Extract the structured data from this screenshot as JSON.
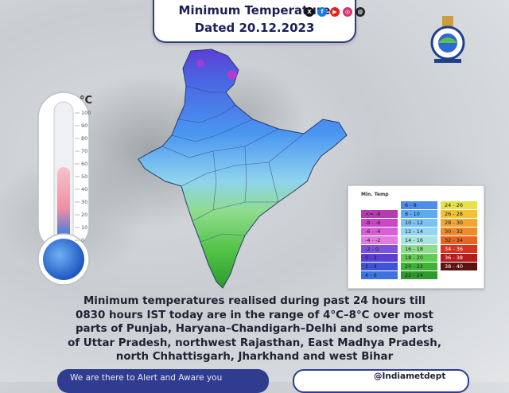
{
  "header": {
    "title": "Minimum Temperature",
    "date_line": "Dated 20.12.2023"
  },
  "thermometer": {
    "unit": "°C",
    "ticks": [
      "100",
      "90",
      "80",
      "70",
      "60",
      "50",
      "40",
      "30",
      "20",
      "10",
      "0"
    ],
    "fill_level_fraction": 0.2,
    "colors": {
      "fill_top": "#f4b6c0",
      "fill_bottom": "#2f61c8",
      "bulb": "#2f6fd0"
    }
  },
  "map": {
    "region": "India",
    "description_colors": {
      "north": "#5b3fd6",
      "mid": "#4da3ff",
      "south": "#5bd05a"
    }
  },
  "legend": {
    "title": "Min. Temp",
    "items": [
      {
        "label": "<= -8",
        "color": "#b23cb0"
      },
      {
        "label": "-8 - -6",
        "color": "#c946c6"
      },
      {
        "label": "-6 - -4",
        "color": "#d760d4"
      },
      {
        "label": "-4 - -2",
        "color": "#e07be0"
      },
      {
        "label": "-2 - 0",
        "color": "#7b52d9"
      },
      {
        "label": "0 - 2",
        "color": "#5a3fd0"
      },
      {
        "label": "2 - 4",
        "color": "#3f53d6"
      },
      {
        "label": "4 - 6",
        "color": "#3b74e0"
      },
      {
        "label": "6 - 8",
        "color": "#4d8de8"
      },
      {
        "label": "8 - 10",
        "color": "#5ea9f0"
      },
      {
        "label": "10 - 12",
        "color": "#79c2f3"
      },
      {
        "label": "12 - 14",
        "color": "#94d6f2"
      },
      {
        "label": "14 - 16",
        "color": "#a7e4de"
      },
      {
        "label": "16 - 18",
        "color": "#8fdc8c"
      },
      {
        "label": "18 - 20",
        "color": "#63cc54"
      },
      {
        "label": "20 - 22",
        "color": "#3fb335"
      },
      {
        "label": "22 - 24",
        "color": "#2e9a2c"
      },
      {
        "label": "24 - 26",
        "color": "#e7e14a"
      },
      {
        "label": "26 - 28",
        "color": "#f0c23a"
      },
      {
        "label": "28 - 30",
        "color": "#f0a630"
      },
      {
        "label": "30 - 32",
        "color": "#ee8b2a"
      },
      {
        "label": "32 - 34",
        "color": "#e66525"
      },
      {
        "label": "34 - 36",
        "color": "#d8321e"
      },
      {
        "label": "36 - 38",
        "color": "#b71a1a"
      },
      {
        "label": "38 - 40",
        "color": "#5a1410"
      }
    ]
  },
  "summary": {
    "lines": [
      "Minimum temperatures realised during past 24 hours till",
      "0830 hours IST today are in the range of 4°C–8°C over most",
      "parts of Punjab, Haryana–Chandigarh–Delhi and some parts",
      "of Uttar Pradesh, northwest Rajasthan, East Madhya Pradesh,",
      "north Chhattisgarh, Jharkhand and west Bihar"
    ]
  },
  "footer": {
    "tagline": "We are there to Alert and Aware you",
    "handle": "@Indiametdept",
    "icons": [
      "x-icon",
      "facebook-icon",
      "youtube-icon",
      "instagram-icon",
      "threads-icon"
    ]
  }
}
